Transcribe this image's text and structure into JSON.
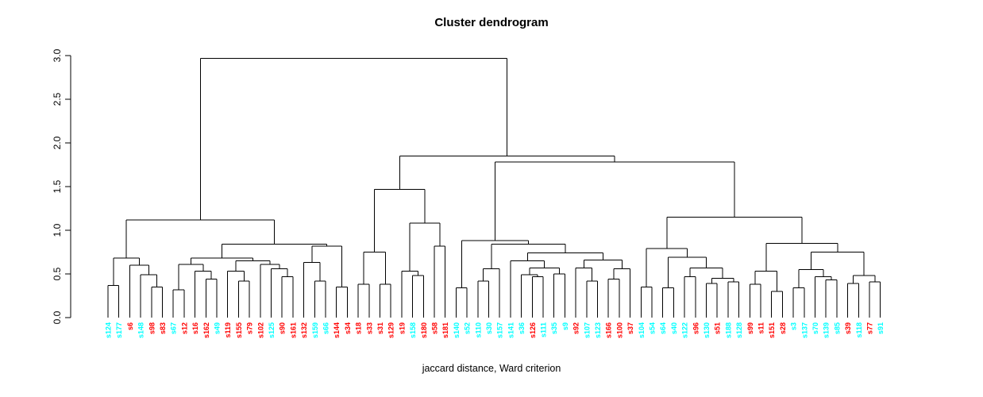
{
  "title": "Cluster dendrogram",
  "xlabel": "jaccard distance, Ward criterion",
  "colors": {
    "red": "#FF0000",
    "cyan": "#00FFFF",
    "line": "#000000",
    "text": "#000000"
  },
  "axis": {
    "tick_labels": [
      "0.0",
      "0.5",
      "1.0",
      "1.5",
      "2.0",
      "2.5",
      "3.0"
    ],
    "min": 0,
    "max": 3
  },
  "chart_data": {
    "type": "dendrogram",
    "title": "Cluster dendrogram",
    "xlabel": "jaccard distance, Ward criterion",
    "ylabel": "",
    "ylim": [
      0,
      3
    ],
    "yticks": [
      0,
      0.5,
      1,
      1.5,
      2,
      2.5,
      3
    ],
    "grid": false,
    "leaf_label_colors_legend": "labels colored red (#FF0000) or cyan (#00FFFF)",
    "leaves": [
      [
        "s124",
        "cyan"
      ],
      [
        "s177",
        "cyan"
      ],
      [
        "s6",
        "red"
      ],
      [
        "s148",
        "cyan"
      ],
      [
        "s98",
        "red"
      ],
      [
        "s83",
        "red"
      ],
      [
        "s67",
        "cyan"
      ],
      [
        "s12",
        "red"
      ],
      [
        "s16",
        "red"
      ],
      [
        "s162",
        "red"
      ],
      [
        "s49",
        "cyan"
      ],
      [
        "s119",
        "red"
      ],
      [
        "s155",
        "red"
      ],
      [
        "s79",
        "red"
      ],
      [
        "s102",
        "red"
      ],
      [
        "s125",
        "cyan"
      ],
      [
        "s90",
        "red"
      ],
      [
        "s161",
        "red"
      ],
      [
        "s132",
        "red"
      ],
      [
        "s159",
        "cyan"
      ],
      [
        "s66",
        "cyan"
      ],
      [
        "s144",
        "red"
      ],
      [
        "s34",
        "red"
      ],
      [
        "s18",
        "red"
      ],
      [
        "s33",
        "red"
      ],
      [
        "s31",
        "red"
      ],
      [
        "s129",
        "red"
      ],
      [
        "s19",
        "red"
      ],
      [
        "s158",
        "cyan"
      ],
      [
        "s180",
        "red"
      ],
      [
        "s58",
        "red"
      ],
      [
        "s181",
        "red"
      ],
      [
        "s140",
        "cyan"
      ],
      [
        "s52",
        "cyan"
      ],
      [
        "s110",
        "cyan"
      ],
      [
        "s30",
        "cyan"
      ],
      [
        "s157",
        "cyan"
      ],
      [
        "s141",
        "cyan"
      ],
      [
        "s36",
        "cyan"
      ],
      [
        "s126",
        "red"
      ],
      [
        "s111",
        "cyan"
      ],
      [
        "s35",
        "cyan"
      ],
      [
        "s9",
        "cyan"
      ],
      [
        "s92",
        "red"
      ],
      [
        "s107",
        "cyan"
      ],
      [
        "s123",
        "cyan"
      ],
      [
        "s166",
        "red"
      ],
      [
        "s100",
        "red"
      ],
      [
        "s37",
        "red"
      ],
      [
        "s104",
        "cyan"
      ],
      [
        "s54",
        "cyan"
      ],
      [
        "s64",
        "cyan"
      ],
      [
        "s40",
        "cyan"
      ],
      [
        "s122",
        "cyan"
      ],
      [
        "s96",
        "red"
      ],
      [
        "s130",
        "cyan"
      ],
      [
        "s51",
        "red"
      ],
      [
        "s188",
        "cyan"
      ],
      [
        "s128",
        "cyan"
      ],
      [
        "s99",
        "red"
      ],
      [
        "s11",
        "red"
      ],
      [
        "s151",
        "red"
      ],
      [
        "s28",
        "red"
      ],
      [
        "s3",
        "cyan"
      ],
      [
        "s137",
        "cyan"
      ],
      [
        "s70",
        "cyan"
      ],
      [
        "s139",
        "cyan"
      ],
      [
        "s85",
        "cyan"
      ],
      [
        "s39",
        "red"
      ],
      [
        "s118",
        "cyan"
      ],
      [
        "s77",
        "red"
      ],
      [
        "s91",
        "cyan"
      ]
    ],
    "tree": {
      "h": 2.97,
      "c": [
        {
          "h": 1.12,
          "c": [
            {
              "h": 0.68,
              "c": [
                {
                  "h": 0.37,
                  "c": [
                    "s124",
                    "s177"
                  ]
                },
                {
                  "h": 0.6,
                  "c": [
                    "s6",
                    {
                      "h": 0.49,
                      "c": [
                        "s148",
                        {
                          "h": 0.35,
                          "c": [
                            "s98",
                            "s83"
                          ]
                        }
                      ]
                    }
                  ]
                }
              ]
            },
            {
              "h": 0.84,
              "c": [
                {
                  "h": 0.68,
                  "c": [
                    {
                      "h": 0.61,
                      "c": [
                        {
                          "h": 0.32,
                          "c": [
                            "s67",
                            "s12"
                          ]
                        },
                        {
                          "h": 0.53,
                          "c": [
                            "s16",
                            {
                              "h": 0.44,
                              "c": [
                                "s162",
                                "s49"
                              ]
                            }
                          ]
                        }
                      ]
                    },
                    {
                      "h": 0.65,
                      "c": [
                        {
                          "h": 0.53,
                          "c": [
                            "s119",
                            {
                              "h": 0.42,
                              "c": [
                                "s155",
                                "s79"
                              ]
                            }
                          ]
                        },
                        {
                          "h": 0.61,
                          "c": [
                            "s102",
                            {
                              "h": 0.56,
                              "c": [
                                "s125",
                                {
                                  "h": 0.47,
                                  "c": [
                                    "s90",
                                    "s161"
                                  ]
                                }
                              ]
                            }
                          ]
                        }
                      ]
                    }
                  ]
                },
                {
                  "h": 0.82,
                  "c": [
                    {
                      "h": 0.63,
                      "c": [
                        "s132",
                        {
                          "h": 0.42,
                          "c": [
                            "s159",
                            "s66"
                          ]
                        }
                      ]
                    },
                    {
                      "h": 0.35,
                      "c": [
                        "s144",
                        "s34"
                      ]
                    }
                  ]
                }
              ]
            }
          ]
        },
        {
          "h": 1.85,
          "c": [
            {
              "h": 1.47,
              "c": [
                {
                  "h": 0.75,
                  "c": [
                    {
                      "h": 0.38,
                      "c": [
                        "s18",
                        "s33"
                      ]
                    },
                    {
                      "h": 0.38,
                      "c": [
                        "s31",
                        "s129"
                      ]
                    }
                  ]
                },
                {
                  "h": 1.08,
                  "c": [
                    {
                      "h": 0.53,
                      "c": [
                        "s19",
                        {
                          "h": 0.48,
                          "c": [
                            "s158",
                            "s180"
                          ]
                        }
                      ]
                    },
                    {
                      "h": 0.82,
                      "c": [
                        "s58",
                        "s181"
                      ]
                    }
                  ]
                }
              ]
            },
            {
              "h": 1.78,
              "c": [
                {
                  "h": 0.88,
                  "c": [
                    {
                      "h": 0.34,
                      "c": [
                        "s140",
                        "s52"
                      ]
                    },
                    {
                      "h": 0.84,
                      "c": [
                        {
                          "h": 0.56,
                          "c": [
                            {
                              "h": 0.42,
                              "c": [
                                "s110",
                                "s30"
                              ]
                            },
                            "s157"
                          ]
                        },
                        {
                          "h": 0.74,
                          "c": [
                            {
                              "h": 0.65,
                              "c": [
                                "s141",
                                {
                                  "h": 0.57,
                                  "c": [
                                    {
                                      "h": 0.49,
                                      "c": [
                                        "s36",
                                        {
                                          "h": 0.47,
                                          "c": [
                                            "s126",
                                            "s111"
                                          ]
                                        }
                                      ]
                                    },
                                    {
                                      "h": 0.5,
                                      "c": [
                                        "s35",
                                        "s9"
                                      ]
                                    }
                                  ]
                                }
                              ]
                            },
                            {
                              "h": 0.66,
                              "c": [
                                {
                                  "h": 0.57,
                                  "c": [
                                    "s92",
                                    {
                                      "h": 0.42,
                                      "c": [
                                        "s107",
                                        "s123"
                                      ]
                                    }
                                  ]
                                },
                                {
                                  "h": 0.56,
                                  "c": [
                                    {
                                      "h": 0.44,
                                      "c": [
                                        "s166",
                                        "s100"
                                      ]
                                    },
                                    "s37"
                                  ]
                                }
                              ]
                            }
                          ]
                        }
                      ]
                    }
                  ]
                },
                {
                  "h": 1.15,
                  "c": [
                    {
                      "h": 0.79,
                      "c": [
                        {
                          "h": 0.35,
                          "c": [
                            "s104",
                            "s54"
                          ]
                        },
                        {
                          "h": 0.69,
                          "c": [
                            {
                              "h": 0.34,
                              "c": [
                                "s64",
                                "s40"
                              ]
                            },
                            {
                              "h": 0.57,
                              "c": [
                                {
                                  "h": 0.47,
                                  "c": [
                                    "s122",
                                    "s96"
                                  ]
                                },
                                {
                                  "h": 0.45,
                                  "c": [
                                    {
                                      "h": 0.39,
                                      "c": [
                                        "s130",
                                        "s51"
                                      ]
                                    },
                                    {
                                      "h": 0.41,
                                      "c": [
                                        "s188",
                                        "s128"
                                      ]
                                    }
                                  ]
                                }
                              ]
                            }
                          ]
                        }
                      ]
                    },
                    {
                      "h": 0.85,
                      "c": [
                        {
                          "h": 0.53,
                          "c": [
                            {
                              "h": 0.38,
                              "c": [
                                "s99",
                                "s11"
                              ]
                            },
                            {
                              "h": 0.3,
                              "c": [
                                "s151",
                                "s28"
                              ]
                            }
                          ]
                        },
                        {
                          "h": 0.75,
                          "c": [
                            {
                              "h": 0.55,
                              "c": [
                                {
                                  "h": 0.34,
                                  "c": [
                                    "s3",
                                    "s137"
                                  ]
                                },
                                {
                                  "h": 0.47,
                                  "c": [
                                    "s70",
                                    {
                                      "h": 0.43,
                                      "c": [
                                        "s139",
                                        "s85"
                                      ]
                                    }
                                  ]
                                }
                              ]
                            },
                            {
                              "h": 0.48,
                              "c": [
                                {
                                  "h": 0.39,
                                  "c": [
                                    "s39",
                                    "s118"
                                  ]
                                },
                                {
                                  "h": 0.41,
                                  "c": [
                                    "s77",
                                    "s91"
                                  ]
                                }
                              ]
                            }
                          ]
                        }
                      ]
                    }
                  ]
                }
              ]
            }
          ]
        }
      ]
    }
  }
}
